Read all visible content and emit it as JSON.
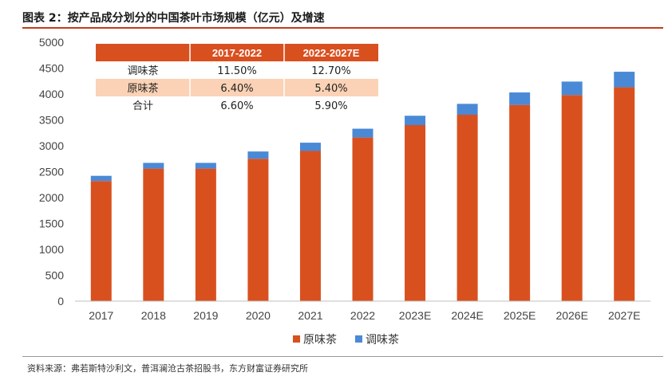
{
  "title": "图表 2：按产品成分划分的中国茶叶市场规模（亿元）及增速",
  "source": "资料来源：弗若斯特沙利文，普洱澜沧古茶招股书，东方财富证券研究所",
  "colors": {
    "original": "#d9501f",
    "blended": "#4a89d6",
    "accent": "#c43c1c",
    "table_header": "#d9501f",
    "table_highlight": "#fbd2b5"
  },
  "growth_table": {
    "headers": [
      "",
      "2017-2022",
      "2022-2027E"
    ],
    "rows": [
      [
        "调味茶",
        "11.50%",
        "12.70%"
      ],
      [
        "原味茶",
        "6.40%",
        "5.40%"
      ],
      [
        "合计",
        "6.60%",
        "5.90%"
      ]
    ]
  },
  "chart_data": {
    "type": "bar",
    "stacked": true,
    "categories": [
      "2017",
      "2018",
      "2019",
      "2020",
      "2021",
      "2022",
      "2023E",
      "2024E",
      "2025E",
      "2026E",
      "2027E"
    ],
    "series": [
      {
        "name": "原味茶",
        "values": [
          2320,
          2560,
          2560,
          2750,
          2900,
          3160,
          3400,
          3600,
          3790,
          3980,
          4130
        ]
      },
      {
        "name": "调味茶",
        "values": [
          100,
          110,
          110,
          140,
          160,
          170,
          180,
          210,
          240,
          260,
          300
        ]
      }
    ],
    "ylim": [
      0,
      5000
    ],
    "yticks": [
      0,
      500,
      1000,
      1500,
      2000,
      2500,
      3000,
      3500,
      4000,
      4500,
      5000
    ],
    "legend_position": "bottom-center",
    "grid": false
  }
}
